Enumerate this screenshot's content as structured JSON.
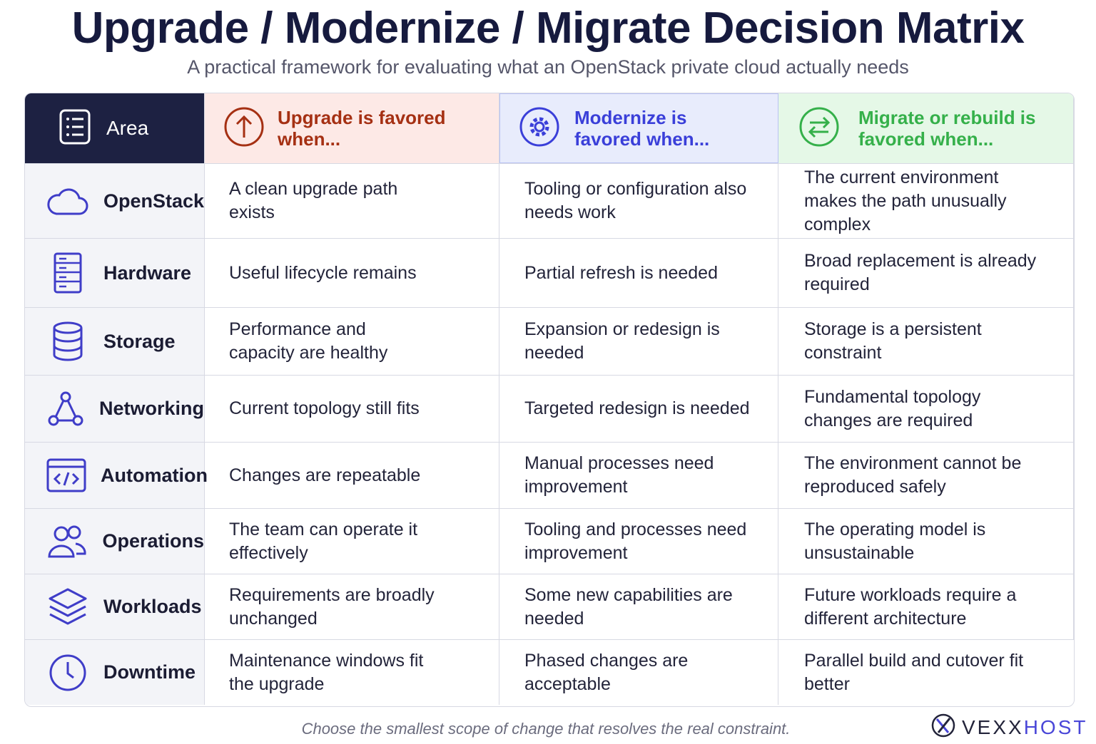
{
  "title": "Upgrade / Modernize / Migrate Decision Matrix",
  "subtitle": "A practical framework for evaluating what an OpenStack private cloud actually needs",
  "headers": {
    "area": "Area",
    "upgrade": "Upgrade is favored when...",
    "modernize_line1": "Modernize is",
    "modernize_line2": "favored when...",
    "migrate_line1": "Migrate or rebuild is",
    "migrate_line2": "favored when..."
  },
  "header_icons": {
    "area": "list-icon",
    "upgrade": "arrow-up-circle-icon",
    "modernize": "gear-circle-icon",
    "migrate": "swap-arrows-circle-icon"
  },
  "colors": {
    "area_header_bg": "#1d2142",
    "upgrade_accent": "#a53013",
    "modernize_accent": "#3a3fd9",
    "migrate_accent": "#35b04a",
    "icon_color": "#3f3dc8"
  },
  "rows": [
    {
      "area": "OpenStack",
      "icon": "cloud-icon",
      "upgrade": "A clean upgrade path exists",
      "modernize": "Tooling or configuration also needs work",
      "migrate": "The current environment makes the path unusually complex"
    },
    {
      "area": "Hardware",
      "icon": "server-icon",
      "upgrade": "Useful lifecycle remains",
      "modernize": "Partial refresh is needed",
      "migrate": "Broad replacement is already required"
    },
    {
      "area": "Storage",
      "icon": "database-icon",
      "upgrade": "Performance and capacity are healthy",
      "modernize": "Expansion or redesign is needed",
      "migrate": "Storage is a persistent constraint"
    },
    {
      "area": "Networking",
      "icon": "network-icon",
      "upgrade": "Current topology still fits",
      "modernize": "Targeted redesign is needed",
      "migrate": "Fundamental topology changes are required"
    },
    {
      "area": "Automation",
      "icon": "code-window-icon",
      "upgrade": "Changes are repeatable",
      "modernize": "Manual processes need improvement",
      "migrate": "The environment cannot be reproduced safely"
    },
    {
      "area": "Operations",
      "icon": "users-icon",
      "upgrade": "The team can operate it effectively",
      "modernize": "Tooling and processes need improvement",
      "migrate": "The operating model is unsustainable"
    },
    {
      "area": "Workloads",
      "icon": "layers-icon",
      "upgrade": "Requirements are broadly unchanged",
      "modernize": "Some new capabilities are needed",
      "migrate": "Future workloads require a different architecture"
    },
    {
      "area": "Downtime",
      "icon": "clock-icon",
      "upgrade": "Maintenance windows fit the upgrade",
      "modernize": "Phased changes are acceptable",
      "migrate": "Parallel build and cutover fit better"
    }
  ],
  "footer": "Choose the smallest scope of change that resolves the real constraint.",
  "brand": {
    "part1": "VEXX",
    "part2": "HOST"
  }
}
